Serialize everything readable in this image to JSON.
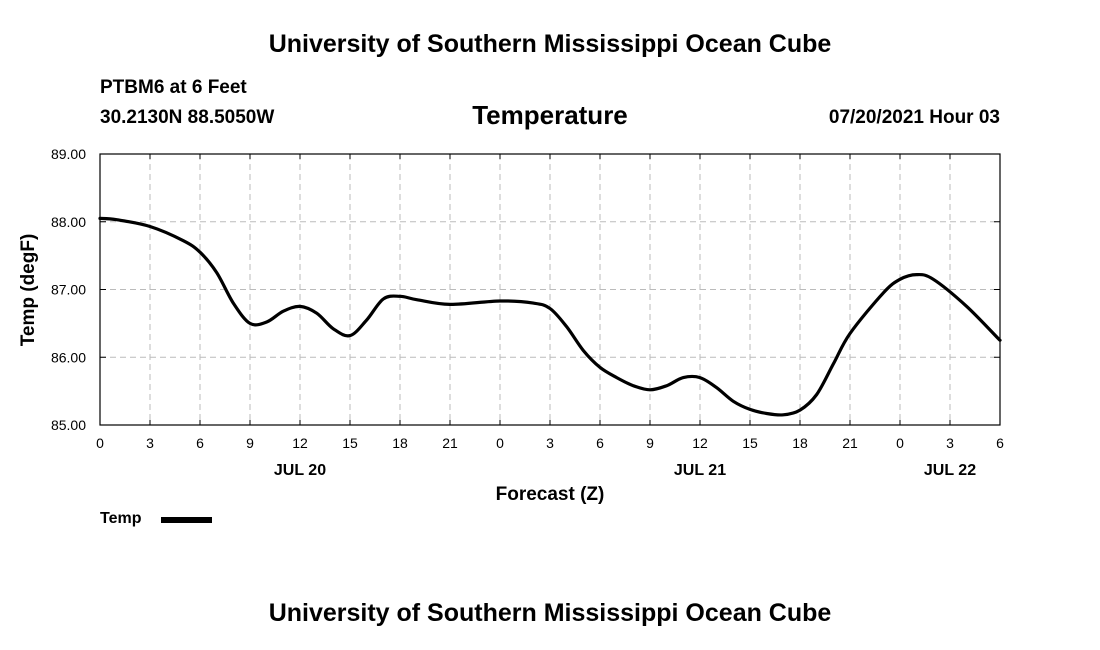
{
  "page": {
    "title_top": "University of Southern Mississippi Ocean Cube",
    "title_bottom": "University of Southern Mississippi Ocean Cube",
    "station": "PTBM6 at 6 Feet",
    "coordinates": "30.2130N  88.5050W",
    "parameter": "Temperature",
    "timestamp": "07/20/2021 Hour 03"
  },
  "legend": {
    "label": "Temp",
    "color": "#000000"
  },
  "chart_data": {
    "type": "line",
    "title": "Temperature",
    "xlabel": "Forecast (Z)",
    "ylabel": "Temp (degF)",
    "ylim": [
      85.0,
      89.0
    ],
    "xlim": [
      0,
      54
    ],
    "grid": true,
    "legend_position": "bottom-left",
    "x_ticks": [
      {
        "value": 0,
        "label": "0"
      },
      {
        "value": 3,
        "label": "3"
      },
      {
        "value": 6,
        "label": "6"
      },
      {
        "value": 9,
        "label": "9"
      },
      {
        "value": 12,
        "label": "12"
      },
      {
        "value": 15,
        "label": "15"
      },
      {
        "value": 18,
        "label": "18"
      },
      {
        "value": 21,
        "label": "21"
      },
      {
        "value": 24,
        "label": "0"
      },
      {
        "value": 27,
        "label": "3"
      },
      {
        "value": 30,
        "label": "6"
      },
      {
        "value": 33,
        "label": "9"
      },
      {
        "value": 36,
        "label": "12"
      },
      {
        "value": 39,
        "label": "15"
      },
      {
        "value": 42,
        "label": "18"
      },
      {
        "value": 45,
        "label": "21"
      },
      {
        "value": 48,
        "label": "0"
      },
      {
        "value": 51,
        "label": "3"
      },
      {
        "value": 54,
        "label": "6"
      }
    ],
    "y_ticks": [
      {
        "value": 85,
        "label": "85.00"
      },
      {
        "value": 86,
        "label": "86.00"
      },
      {
        "value": 87,
        "label": "87.00"
      },
      {
        "value": 88,
        "label": "88.00"
      },
      {
        "value": 89,
        "label": "89.00"
      }
    ],
    "date_labels": [
      {
        "value": 12,
        "label": "JUL 20"
      },
      {
        "value": 36,
        "label": "JUL 21"
      },
      {
        "value": 51,
        "label": "JUL 22"
      }
    ],
    "series": [
      {
        "name": "Temp",
        "color": "#000000",
        "x": [
          0,
          1,
          3,
          5,
          6,
          7,
          8,
          9,
          10,
          11,
          12,
          13,
          14,
          15,
          16,
          17,
          18,
          19,
          21,
          24,
          26,
          27,
          28,
          29,
          30,
          31,
          32,
          33,
          34,
          35,
          36,
          37,
          38,
          39,
          40,
          41,
          42,
          43,
          44,
          45,
          47,
          48,
          49,
          50,
          52,
          54
        ],
        "values": [
          88.05,
          88.03,
          87.93,
          87.72,
          87.55,
          87.25,
          86.8,
          86.5,
          86.52,
          86.68,
          86.75,
          86.65,
          86.42,
          86.32,
          86.55,
          86.86,
          86.9,
          86.85,
          86.78,
          86.83,
          86.8,
          86.72,
          86.45,
          86.1,
          85.85,
          85.7,
          85.58,
          85.52,
          85.58,
          85.7,
          85.7,
          85.55,
          85.35,
          85.23,
          85.17,
          85.15,
          85.22,
          85.45,
          85.9,
          86.35,
          86.95,
          87.15,
          87.22,
          87.15,
          86.75,
          86.25
        ]
      }
    ]
  }
}
